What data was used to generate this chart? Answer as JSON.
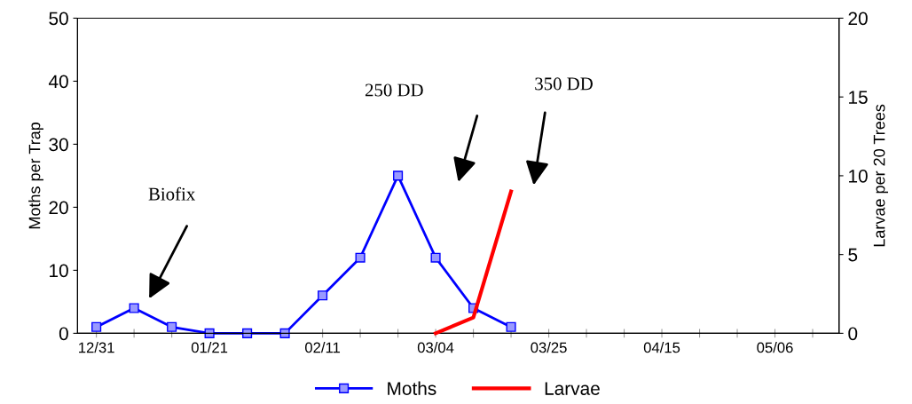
{
  "chart_data": {
    "type": "line",
    "categories": [
      "12/31",
      null,
      null,
      "01/21",
      null,
      null,
      "02/11",
      null,
      null,
      "03/04",
      null,
      null,
      "03/25",
      null,
      null,
      "04/15",
      null,
      null,
      "05/06",
      null
    ],
    "series": [
      {
        "name": "Moths",
        "color": "#0000ff",
        "marker": "square",
        "values": [
          1,
          4,
          1,
          0,
          0,
          0,
          6,
          12,
          25,
          12,
          4,
          1,
          null,
          null,
          null,
          null,
          null,
          null,
          null,
          null
        ]
      },
      {
        "name": "Larvae",
        "color": "#ff0000",
        "marker": "none",
        "axis": "y2",
        "values": [
          null,
          null,
          null,
          null,
          null,
          null,
          null,
          null,
          null,
          0,
          1,
          9,
          null,
          null,
          null,
          null,
          null,
          null,
          null,
          null
        ]
      }
    ],
    "ylabel": "Moths per Trap",
    "y2label": "Larvae per 20 Trees",
    "ylim": [
      0,
      50
    ],
    "yticks": [
      0,
      10,
      20,
      30,
      40,
      50
    ],
    "y2lim": [
      0,
      20
    ],
    "y2ticks": [
      0,
      5,
      10,
      15,
      20
    ],
    "annotations": [
      "Biofix",
      "250 DD",
      "350 DD"
    ],
    "legend": "bottom",
    "grid": false,
    "line_style": "solid"
  }
}
